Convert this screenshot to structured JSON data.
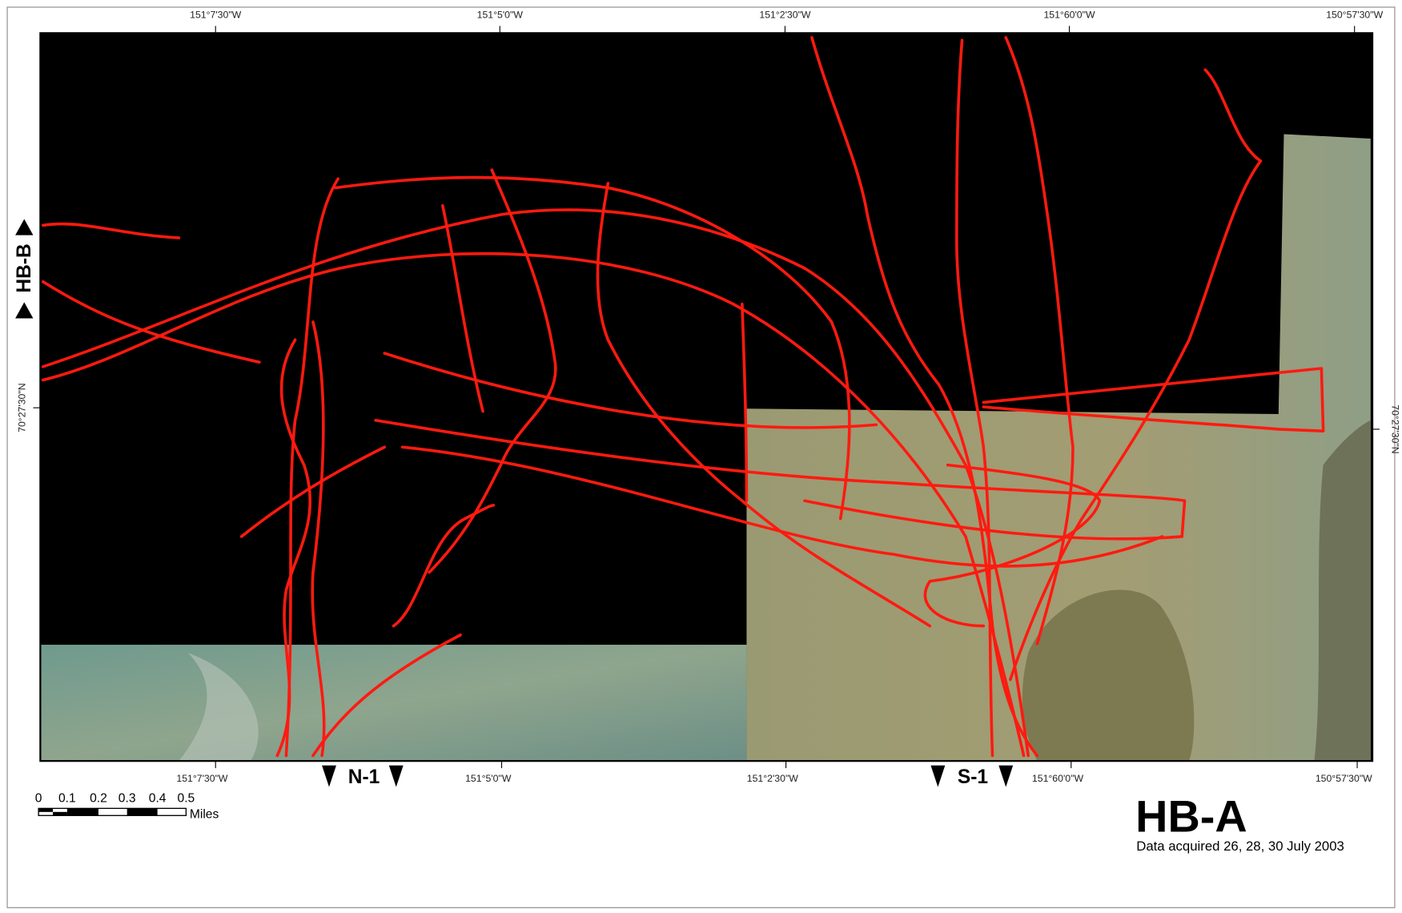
{
  "top_labels": [
    "151°7'30\"W",
    "151°5'0\"W",
    "151°2'30\"W",
    "151°60'0\"W",
    "150°57'30\"W"
  ],
  "bottom_labels": [
    "151°7'30\"W",
    "151°5'0\"W",
    "151°2'30\"W",
    "151°60'0\"W",
    "150°57'30\"W"
  ],
  "left_label": "70°27'30\"N",
  "right_label": "70°27'30\"N",
  "side_marker": "HB-B",
  "bottom_markers": [
    "N-1",
    "S-1"
  ],
  "scale_bar": {
    "labels": [
      "0",
      "0.1",
      "0.2",
      "0.3",
      "0.4",
      "0.5"
    ],
    "unit": "Miles"
  },
  "title": "HB-A",
  "subtitle": "Data acquired 26, 28, 30 July 2003"
}
